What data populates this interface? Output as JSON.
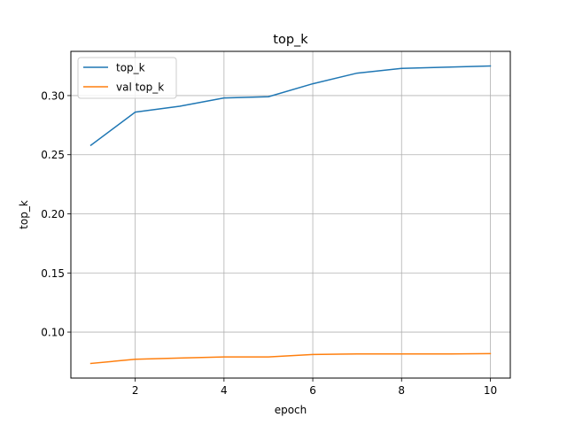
{
  "chart_data": {
    "type": "line",
    "title": "top_k",
    "xlabel": "epoch",
    "ylabel": "top_k",
    "xlim": [
      0.55,
      10.45
    ],
    "ylim": [
      0.0611,
      0.3374
    ],
    "xticks": [
      2,
      4,
      6,
      8,
      10
    ],
    "xtick_labels": [
      "2",
      "4",
      "6",
      "8",
      "10"
    ],
    "yticks": [
      0.1,
      0.15,
      0.2,
      0.25,
      0.3
    ],
    "ytick_labels": [
      "0.10",
      "0.15",
      "0.20",
      "0.25",
      "0.30"
    ],
    "grid": true,
    "legend_position": "top-left",
    "x": [
      1,
      2,
      3,
      4,
      5,
      6,
      7,
      8,
      9,
      10
    ],
    "series": [
      {
        "name": "top_k",
        "color": "#1f77b4",
        "values": [
          0.258,
          0.286,
          0.291,
          0.298,
          0.299,
          0.31,
          0.319,
          0.323,
          0.324,
          0.325
        ]
      },
      {
        "name": "val top_k",
        "color": "#ff7f0e",
        "values": [
          0.0735,
          0.077,
          0.078,
          0.079,
          0.079,
          0.081,
          0.0815,
          0.0815,
          0.0815,
          0.0818
        ]
      }
    ]
  }
}
